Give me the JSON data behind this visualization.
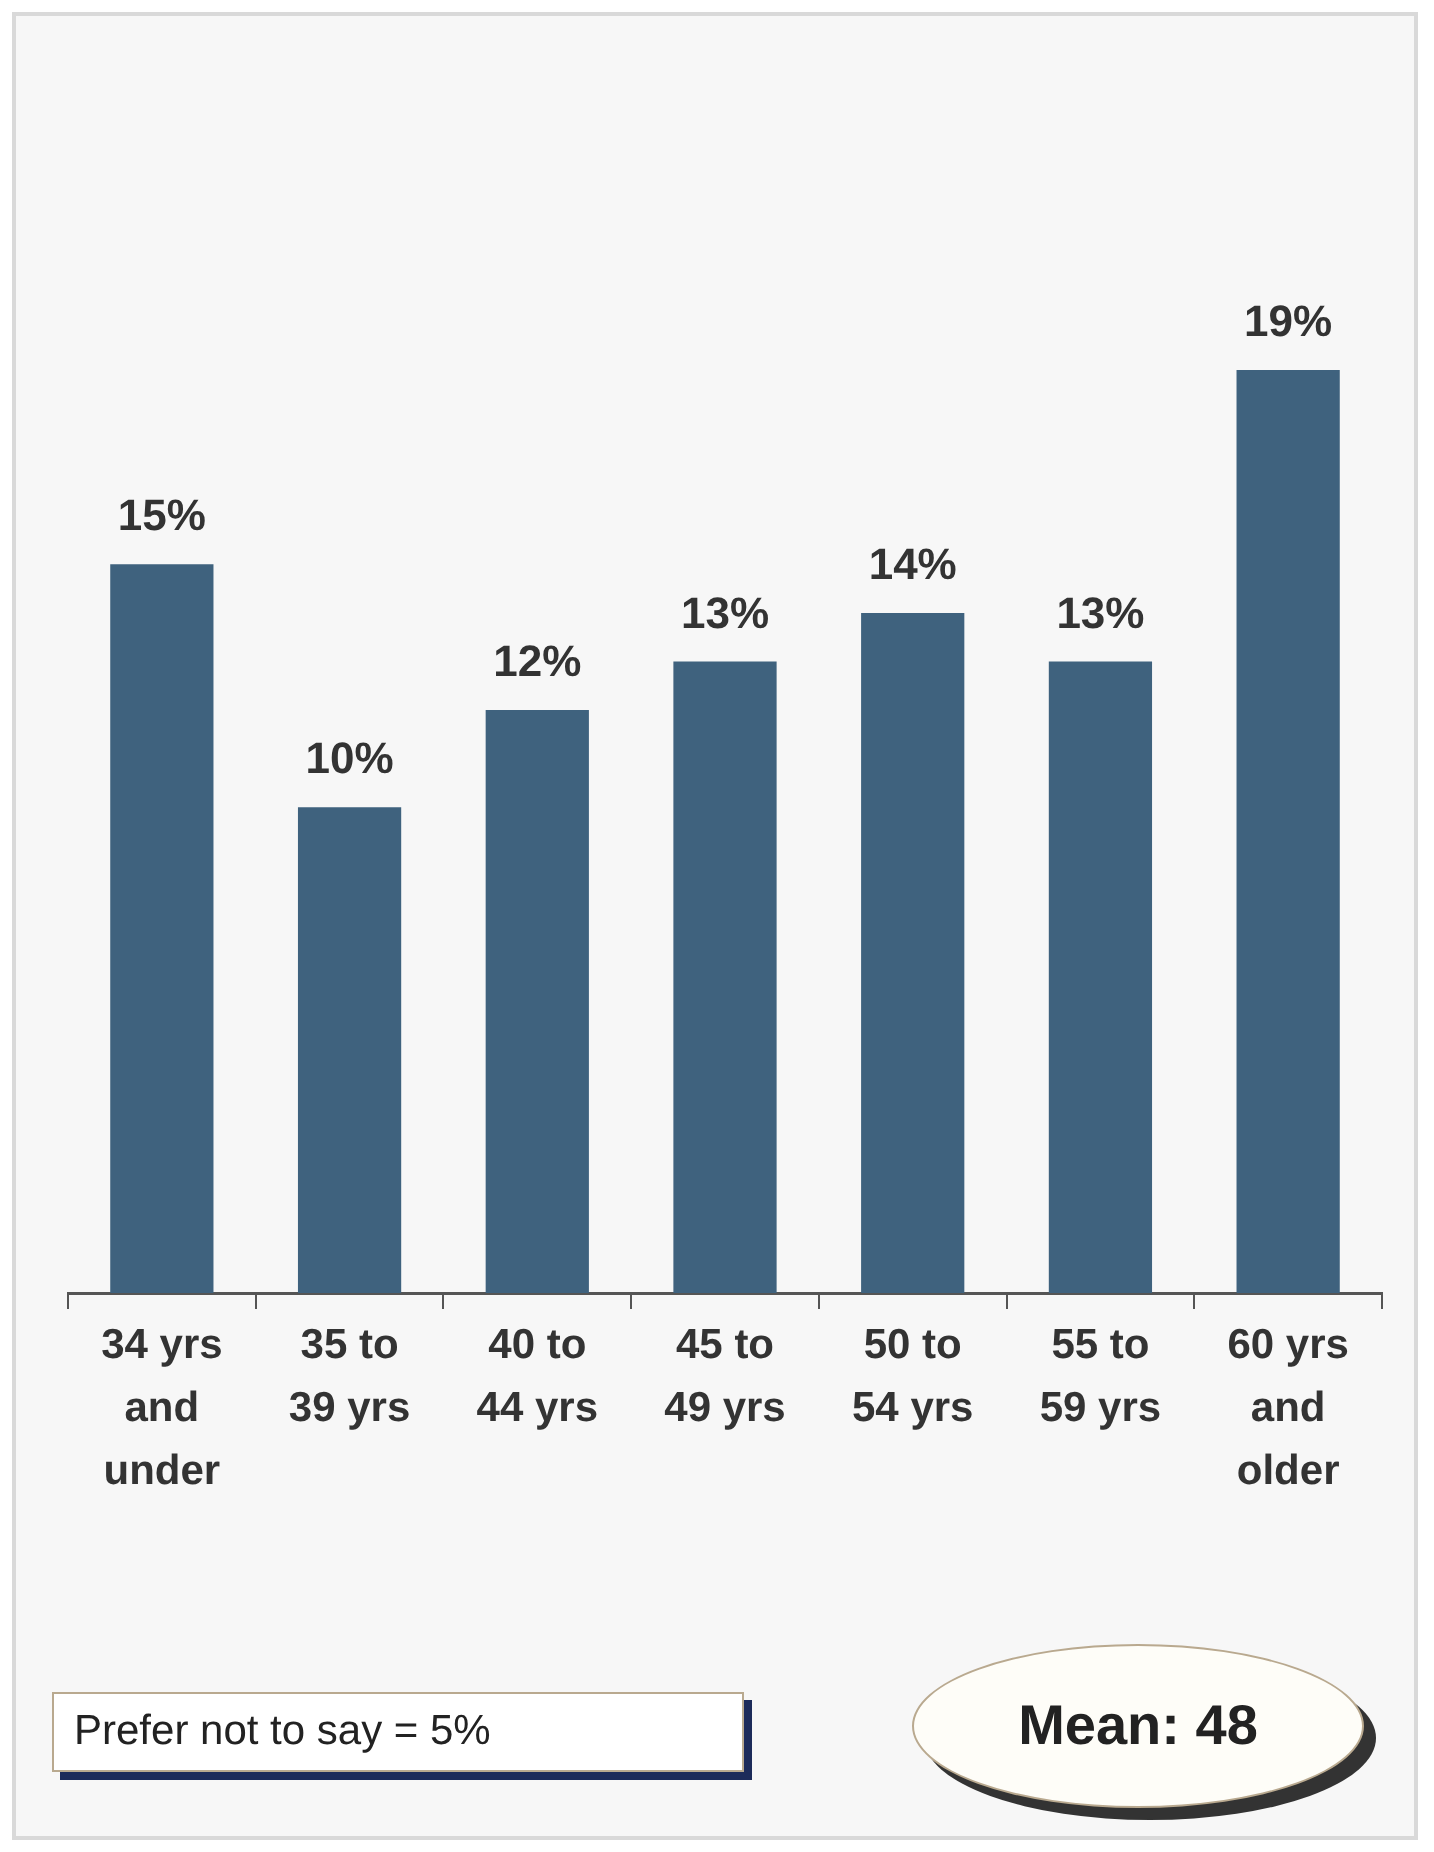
{
  "chart_data": {
    "type": "bar",
    "categories": [
      "34 yrs and under",
      "35 to 39 yrs",
      "40 to 44 yrs",
      "45 to 49 yrs",
      "50 to 54 yrs",
      "55 to 59 yrs",
      "60 yrs and older"
    ],
    "values": [
      15,
      10,
      12,
      13,
      14,
      13,
      19
    ],
    "value_labels": [
      "15%",
      "10%",
      "12%",
      "13%",
      "14%",
      "13%",
      "19%"
    ],
    "color": "#3f627e",
    "grid": false,
    "legend": false,
    "annotations": [
      "Prefer not to say = 5%",
      "Mean: 48"
    ]
  }
}
